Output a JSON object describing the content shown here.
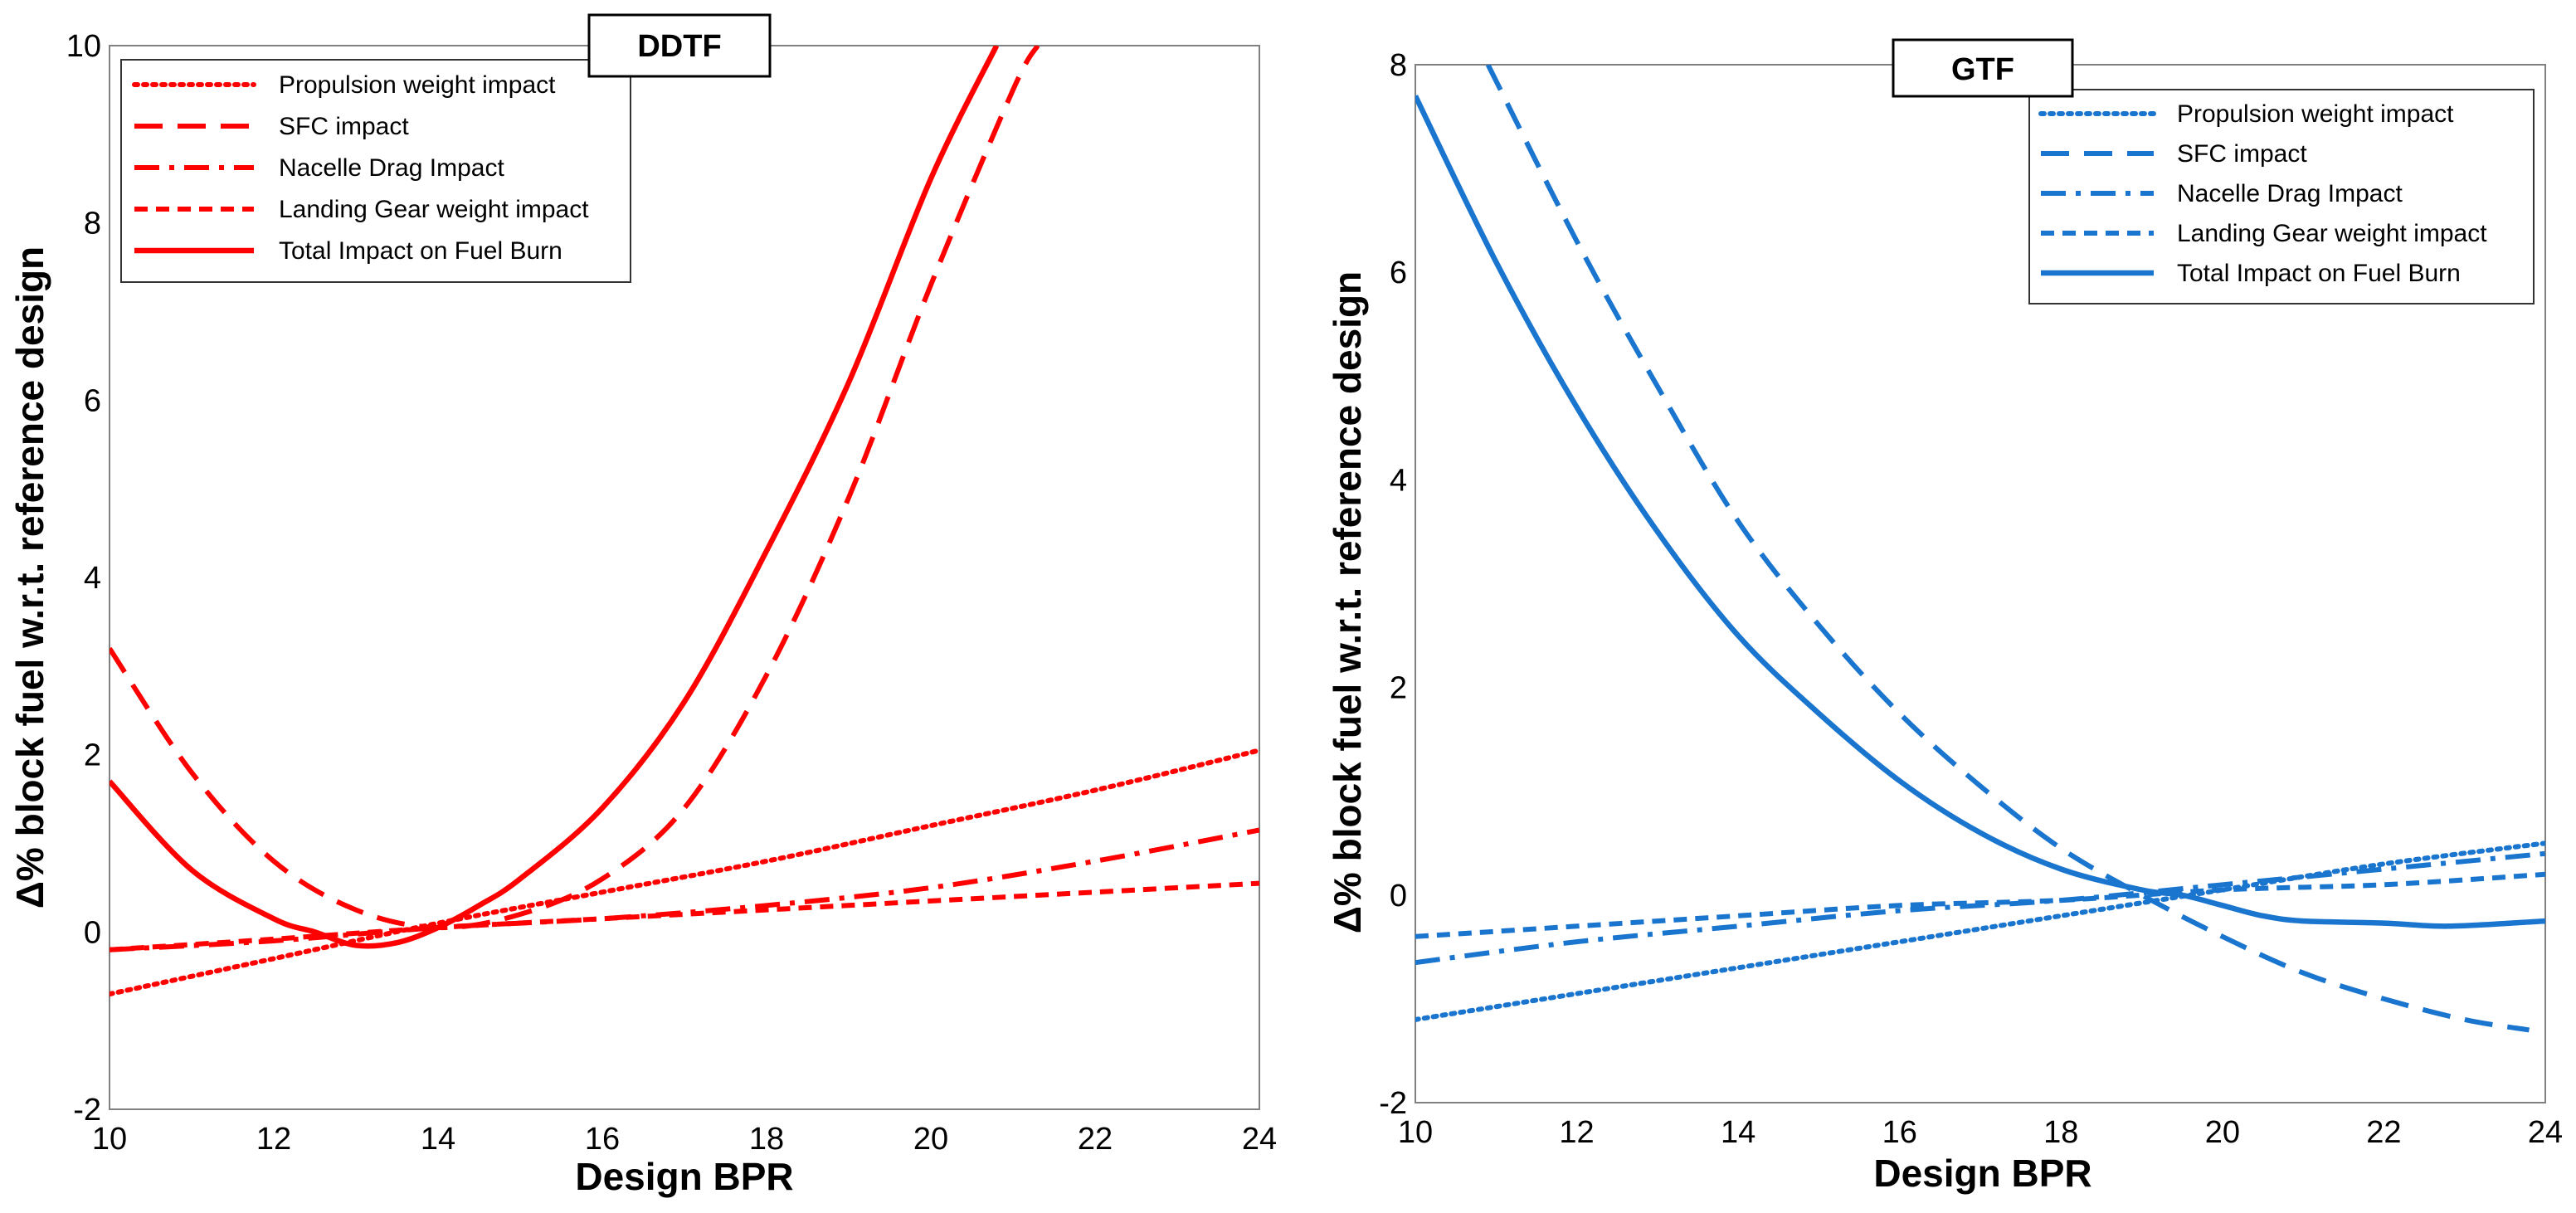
{
  "chart_data": [
    {
      "type": "line",
      "title": "DDTF",
      "xlabel": "Design BPR",
      "ylabel": "Δ% block fuel w.r.t. reference design",
      "xlim": [
        10,
        24
      ],
      "ylim": [
        -2,
        10
      ],
      "xticks": [
        10,
        12,
        14,
        16,
        18,
        20,
        22,
        24
      ],
      "yticks": [
        -2,
        0,
        2,
        4,
        6,
        8,
        10
      ],
      "color": "#ff0000",
      "legend_position": "top-left",
      "series": [
        {
          "name": "Propulsion weight impact",
          "style": "dotted",
          "x": [
            10,
            12,
            14,
            16,
            18,
            20,
            22,
            24
          ],
          "y": [
            -0.7,
            -0.3,
            0.1,
            0.45,
            0.8,
            1.2,
            1.6,
            2.05
          ]
        },
        {
          "name": "SFC impact",
          "style": "dashed",
          "x": [
            10,
            11,
            12,
            13,
            14,
            15,
            16,
            17,
            18,
            19,
            20,
            21,
            21.3
          ],
          "y": [
            3.2,
            1.8,
            0.8,
            0.25,
            0.05,
            0.2,
            0.6,
            1.4,
            2.9,
            4.9,
            7.3,
            9.5,
            10
          ]
        },
        {
          "name": "Nacelle Drag Impact",
          "style": "dashdot",
          "x": [
            10,
            12,
            14,
            16,
            18,
            20,
            22,
            24
          ],
          "y": [
            -0.2,
            -0.1,
            0.05,
            0.15,
            0.3,
            0.5,
            0.8,
            1.15
          ]
        },
        {
          "name": "Landing Gear weight impact",
          "style": "dashed-short",
          "x": [
            10,
            12,
            14,
            16,
            18,
            20,
            22,
            24
          ],
          "y": [
            -0.2,
            -0.08,
            0.05,
            0.15,
            0.25,
            0.35,
            0.45,
            0.55
          ]
        },
        {
          "name": "Total Impact on Fuel Burn",
          "style": "solid",
          "x": [
            10,
            11,
            12,
            12.5,
            13,
            13.5,
            14,
            14.5,
            15,
            16,
            17,
            18,
            19,
            20,
            20.8
          ],
          "y": [
            1.7,
            0.7,
            0.15,
            0.0,
            -0.15,
            -0.12,
            0.05,
            0.3,
            0.6,
            1.4,
            2.6,
            4.3,
            6.2,
            8.5,
            10
          ]
        }
      ]
    },
    {
      "type": "line",
      "title": "GTF",
      "xlabel": "Design BPR",
      "ylabel": "Δ% block fuel w.r.t. reference design",
      "xlim": [
        10,
        24
      ],
      "ylim": [
        -2,
        8
      ],
      "xticks": [
        10,
        12,
        14,
        16,
        18,
        20,
        22,
        24
      ],
      "yticks": [
        -2,
        0,
        2,
        4,
        6,
        8
      ],
      "color": "#1a75cf",
      "legend_position": "top-right",
      "series": [
        {
          "name": "Propulsion weight impact",
          "style": "dotted",
          "x": [
            10,
            12,
            14,
            16,
            18,
            20,
            22,
            24
          ],
          "y": [
            -1.2,
            -0.95,
            -0.7,
            -0.45,
            -0.2,
            0.05,
            0.3,
            0.5
          ]
        },
        {
          "name": "SFC impact",
          "style": "dashed",
          "x": [
            10.9,
            12,
            13,
            14,
            15,
            16,
            17,
            18,
            19,
            20,
            21,
            22,
            23,
            23.8
          ],
          "y": [
            8,
            6.3,
            4.9,
            3.6,
            2.6,
            1.75,
            1.05,
            0.45,
            0.0,
            -0.4,
            -0.75,
            -1.0,
            -1.2,
            -1.3
          ]
        },
        {
          "name": "Nacelle Drag Impact",
          "style": "dashdot",
          "x": [
            10,
            12,
            14,
            16,
            18,
            20,
            22,
            24
          ],
          "y": [
            -0.65,
            -0.45,
            -0.3,
            -0.15,
            -0.05,
            0.1,
            0.25,
            0.4
          ]
        },
        {
          "name": "Landing Gear weight impact",
          "style": "dashed-short",
          "x": [
            10,
            12,
            14,
            16,
            18,
            20,
            22,
            24
          ],
          "y": [
            -0.4,
            -0.3,
            -0.2,
            -0.1,
            -0.05,
            0.05,
            0.1,
            0.2
          ]
        },
        {
          "name": "Total Impact on Fuel Burn",
          "style": "solid",
          "x": [
            10,
            11,
            12,
            13,
            14,
            15,
            16,
            17,
            18,
            19,
            19.5,
            20,
            20.5,
            21,
            22,
            22.8,
            24
          ],
          "y": [
            7.7,
            6.1,
            4.7,
            3.5,
            2.5,
            1.75,
            1.1,
            0.6,
            0.25,
            0.05,
            0.0,
            -0.1,
            -0.2,
            -0.25,
            -0.27,
            -0.3,
            -0.25
          ]
        }
      ]
    }
  ]
}
